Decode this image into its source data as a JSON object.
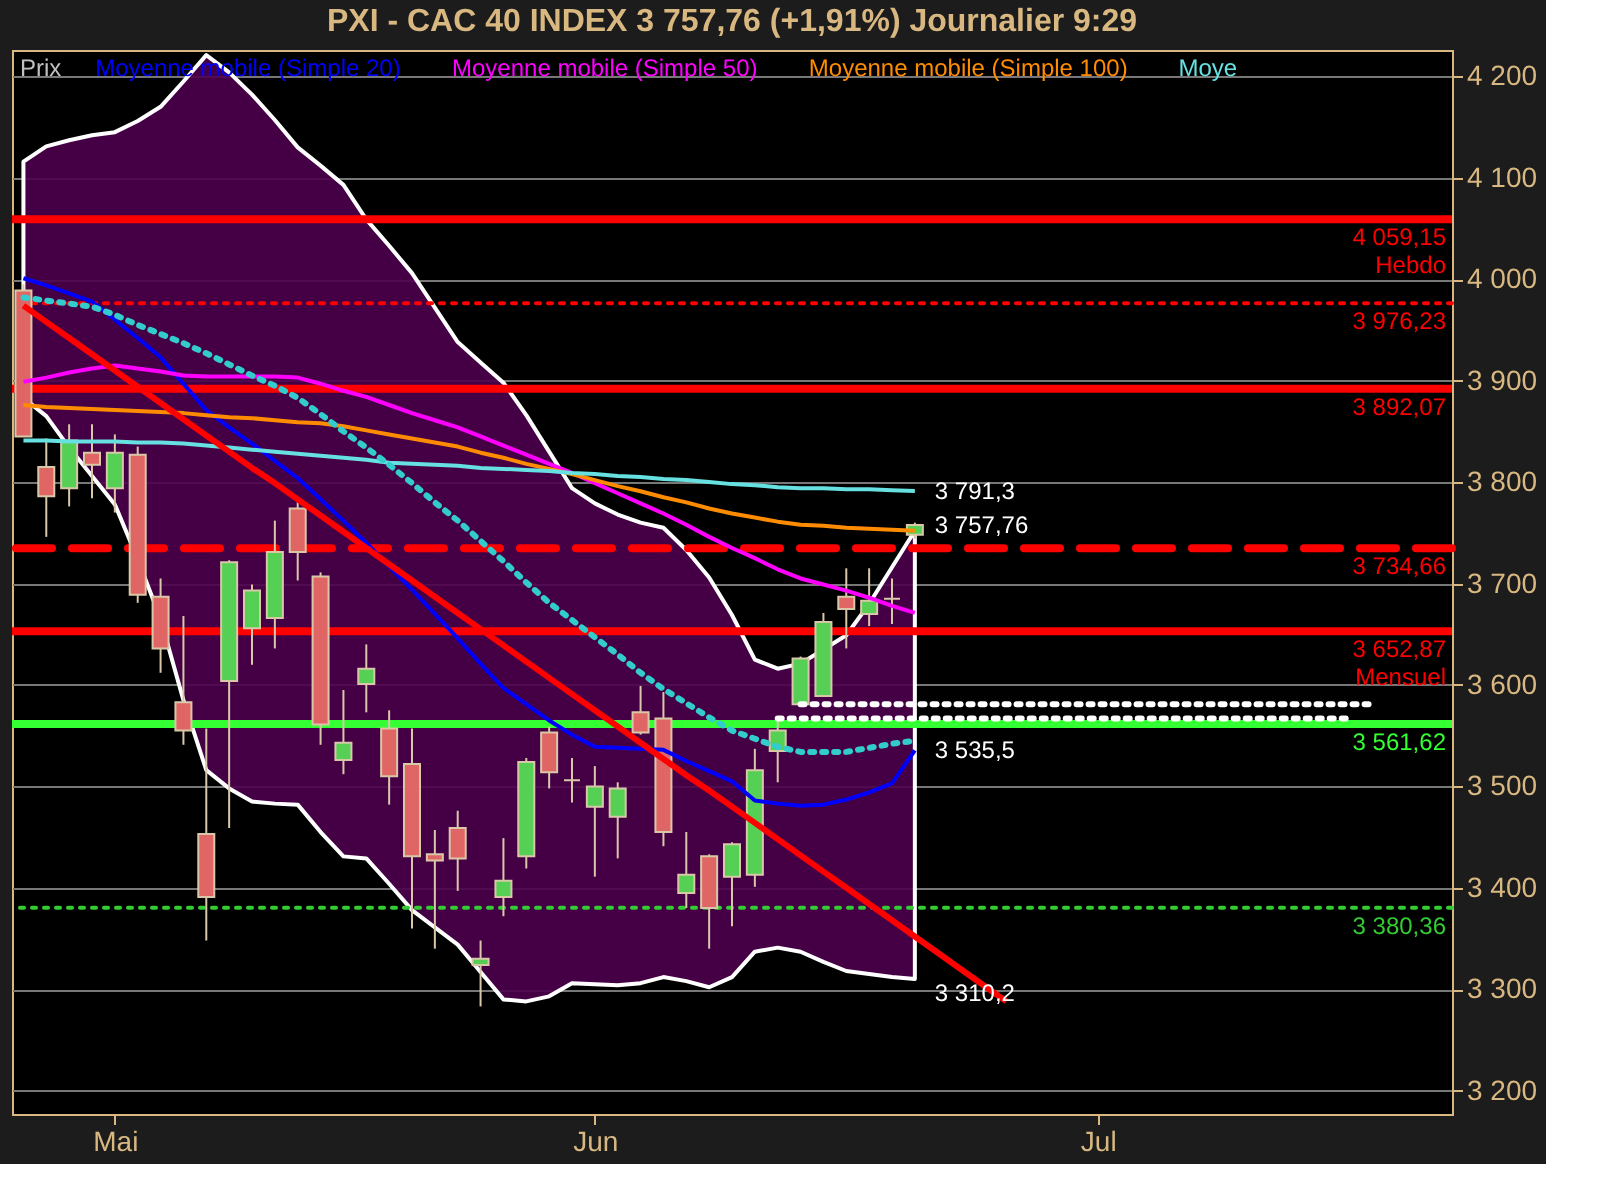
{
  "chart_data": {
    "type": "candlestick",
    "title": "PXI - CAC 40 INDEX    3 757,76 (+1,91%)    Journalier  9:29",
    "categories": [
      null,
      null,
      null,
      null,
      "Mai",
      null,
      null,
      null,
      null,
      null,
      null,
      null,
      null,
      null,
      null,
      null,
      null,
      null,
      null,
      null,
      null,
      null,
      null,
      null,
      null,
      "Jun",
      null,
      null,
      null,
      null,
      null,
      null,
      null,
      null,
      null,
      null,
      null,
      null,
      null,
      null,
      null,
      null,
      null,
      null,
      null,
      null,
      null,
      "Jul",
      null,
      null,
      null,
      null,
      null,
      null,
      null,
      null,
      null,
      null,
      null,
      null,
      null,
      null,
      null
    ],
    "ylim": [
      3177,
      4226
    ],
    "yticks": [
      {
        "value": 3200,
        "label": "3 200"
      },
      {
        "value": 3300,
        "label": "3 300"
      },
      {
        "value": 3400,
        "label": "3 400"
      },
      {
        "value": 3500,
        "label": "3 500"
      },
      {
        "value": 3600,
        "label": "3 600"
      },
      {
        "value": 3700,
        "label": "3 700"
      },
      {
        "value": 3800,
        "label": "3 800"
      },
      {
        "value": 3900,
        "label": "3 900"
      },
      {
        "value": 4000,
        "label": "4 000"
      },
      {
        "value": 4100,
        "label": "4 100"
      },
      {
        "value": 4200,
        "label": "4 200"
      }
    ],
    "grid": "y",
    "legend": "top left",
    "series": [
      {
        "type": "line",
        "name": "Moyenne mobile (Simple 20)",
        "color": "#0000ff",
        "values": [
          4001,
          3994,
          3986,
          3978,
          3960,
          3942,
          3923,
          3897,
          3871,
          3854,
          3838,
          3821,
          3804,
          3783,
          3762,
          3740,
          3717,
          3694,
          3670,
          3646,
          3621,
          3597,
          3581,
          3565,
          3551,
          3539,
          3538,
          3537,
          3536,
          3525,
          3515,
          3505,
          3486,
          3483,
          3481,
          3482,
          3487,
          3494,
          3503,
          3535.5,
          null,
          null,
          null,
          null,
          null,
          null,
          null,
          null,
          null,
          null,
          null,
          null,
          null,
          null,
          null,
          null,
          null,
          null,
          null,
          null,
          null,
          null,
          null
        ],
        "value_labels": [
          null,
          null,
          null,
          null,
          null,
          null,
          null,
          null,
          null,
          null,
          null,
          null,
          null,
          null,
          null,
          null,
          null,
          null,
          null,
          null,
          null,
          null,
          null,
          null,
          null,
          null,
          null,
          null,
          null,
          null,
          null,
          null,
          null,
          null,
          null,
          null,
          null,
          null,
          null,
          "3 535,5",
          null,
          null,
          null,
          null,
          null,
          null,
          null,
          null,
          null,
          null,
          null,
          null,
          null,
          null,
          null,
          null,
          null,
          null,
          null,
          null,
          null,
          null,
          null
        ],
        "upper": [
          4116,
          4131,
          4137,
          4142,
          4145,
          4156,
          4170,
          4195,
          4221,
          4204,
          4182,
          4157,
          4130,
          4112,
          4093,
          4059,
          4033,
          4006,
          3972,
          3938,
          3918,
          3898,
          3866,
          3830,
          3794,
          3779,
          3768,
          3760,
          3755,
          3733,
          3706,
          3669,
          3625,
          3616,
          3621,
          3635,
          3649,
          3680,
          3716,
          3752,
          null,
          null,
          null,
          null,
          null,
          null,
          null,
          null,
          null,
          null,
          null,
          null,
          null,
          null,
          null,
          null,
          null,
          null,
          null,
          null,
          null,
          null,
          null
        ],
        "lower": [
          3883,
          3865,
          3834,
          3806,
          3778,
          3724,
          3665,
          3585,
          3516,
          3498,
          3485,
          3483,
          3482,
          3455,
          3431,
          3429,
          3404,
          3378,
          3361,
          3344,
          3317,
          3290,
          3288,
          3293,
          3306,
          3305,
          3304,
          3306,
          3312,
          3308,
          3302,
          3312,
          3337,
          3341,
          3337,
          3327,
          3318,
          3315,
          3312,
          3310.2,
          null,
          null,
          null,
          null,
          null,
          null,
          null,
          null,
          null,
          null,
          null,
          null,
          null,
          null,
          null,
          null,
          null,
          null,
          null,
          null,
          null,
          null,
          null
        ]
      },
      {
        "type": "line",
        "name": "Moyenne mobile (Simple 50)",
        "color": "#ff00ff",
        "values": [
          3899,
          3903,
          3908,
          3912,
          3915,
          3912,
          3909,
          3905,
          3904,
          3904,
          3904,
          3904,
          3903,
          3897,
          3890,
          3884,
          3876,
          3868,
          3861,
          3854,
          3845,
          3836,
          3827,
          3818,
          3809,
          3799,
          3789,
          3779,
          3769,
          3758,
          3746,
          3735,
          3725,
          3714,
          3705,
          3699,
          3693,
          3686,
          3678,
          3671,
          null,
          null,
          null,
          null,
          null,
          null,
          null,
          null,
          null,
          null,
          null,
          null,
          null,
          null,
          null,
          null,
          null,
          null,
          null,
          null,
          null,
          null,
          null
        ]
      },
      {
        "type": "line",
        "name": "Moyenne mobile (Simple 100)",
        "color": "#ff8c00",
        "values": [
          3876,
          3874,
          3873,
          3872,
          3871,
          3870,
          3869,
          3868,
          3866,
          3864,
          3863,
          3861,
          3859,
          3858,
          3855,
          3851,
          3847,
          3843,
          3839,
          3835,
          3829,
          3824,
          3818,
          3813,
          3808,
          3802,
          3796,
          3791,
          3785,
          3780,
          3774,
          3769,
          3765,
          3761,
          3758,
          3757,
          3755,
          3754,
          3753,
          3752,
          null,
          null,
          null,
          null,
          null,
          null,
          null,
          null,
          null,
          null,
          null,
          null,
          null,
          null,
          null,
          null,
          null,
          null,
          null,
          null,
          null,
          null,
          null
        ]
      },
      {
        "type": "line",
        "name": "Moye",
        "color": "#66e0e0",
        "values": [
          3841,
          3841,
          3840,
          3840,
          3840,
          3839,
          3839,
          3838,
          3836,
          3834,
          3832,
          3830,
          3828,
          3826,
          3824,
          3822,
          3819,
          3818,
          3817,
          3816,
          3814,
          3813,
          3812,
          3811,
          3809,
          3808,
          3806,
          3805,
          3803,
          3802,
          3800,
          3798,
          3797,
          3795,
          3794,
          3794,
          3793,
          3793,
          3792,
          3791.3,
          null,
          null,
          null,
          null,
          null,
          null,
          null,
          null,
          null,
          null,
          null,
          null,
          null,
          null,
          null,
          null,
          null,
          null,
          null,
          null,
          null,
          null,
          null
        ],
        "value_labels": [
          null,
          null,
          null,
          null,
          null,
          null,
          null,
          null,
          null,
          null,
          null,
          null,
          null,
          null,
          null,
          null,
          null,
          null,
          null,
          null,
          null,
          null,
          null,
          null,
          null,
          null,
          null,
          null,
          null,
          null,
          null,
          null,
          null,
          null,
          null,
          null,
          null,
          null,
          null,
          "3 791,3",
          null,
          null,
          null,
          null,
          null,
          null,
          null,
          null,
          null,
          null,
          null,
          null,
          null,
          null,
          null,
          null,
          null,
          null,
          null,
          null,
          null,
          null,
          null
        ]
      },
      {
        "type": "line",
        "color": "#33cccc",
        "line_style": "dotted",
        "values": [
          3982,
          3979,
          3976,
          3973,
          3965,
          3955,
          3946,
          3937,
          3927,
          3916,
          3905,
          3895,
          3883,
          3867,
          3850,
          3834,
          3817,
          3799,
          3780,
          3762,
          3742,
          3722,
          3701,
          3681,
          3664,
          3647,
          3630,
          3612,
          3596,
          3582,
          3568,
          3555,
          3547,
          3539,
          3534,
          3534,
          3534,
          3538,
          3542,
          3545,
          null,
          null,
          null,
          null,
          null,
          null,
          null,
          null,
          null,
          null,
          null,
          null,
          null,
          null,
          null,
          null,
          null,
          null,
          null,
          null,
          null,
          null,
          null
        ]
      },
      {
        "type": "line",
        "color": "#ff0000",
        "values": [
          3974,
          3958,
          3942,
          3926,
          3910,
          3894,
          3878,
          3862,
          3846,
          3830,
          3814,
          3799,
          3783,
          3767,
          3751,
          3735,
          3719,
          3703,
          3687,
          3671,
          3655,
          3639,
          3623,
          3607,
          3591,
          3575,
          3559,
          3543,
          3527,
          3511,
          3496,
          3480,
          3464,
          3448,
          3432,
          3416,
          3400,
          3384,
          3368,
          3352,
          3336,
          3320,
          3304,
          3288,
          null,
          null,
          null,
          null,
          null,
          null,
          null,
          null,
          null,
          null,
          null,
          null,
          null,
          null,
          null,
          null,
          null,
          null,
          null
        ]
      },
      {
        "type": "line",
        "color": "#ffffff",
        "line_style": "dotted",
        "values": [
          null,
          null,
          null,
          null,
          null,
          null,
          null,
          null,
          null,
          null,
          null,
          null,
          null,
          null,
          null,
          null,
          null,
          null,
          null,
          null,
          null,
          null,
          null,
          null,
          null,
          null,
          null,
          null,
          null,
          null,
          null,
          null,
          null,
          null,
          3581,
          3581,
          3581,
          3581,
          3581,
          3581,
          3581,
          3581,
          3581,
          3581,
          3581,
          3581,
          3581,
          3581,
          3581,
          3581,
          3581,
          3581,
          3581,
          3581,
          3581,
          3581,
          3581,
          3581,
          3581,
          3581,
          null,
          null,
          null
        ]
      },
      {
        "type": "line",
        "color": "#ffffff",
        "line_style": "dotted",
        "values": [
          null,
          null,
          null,
          null,
          null,
          null,
          null,
          null,
          null,
          null,
          null,
          null,
          null,
          null,
          null,
          null,
          null,
          null,
          null,
          null,
          null,
          null,
          null,
          null,
          null,
          null,
          null,
          null,
          null,
          null,
          null,
          null,
          null,
          3567,
          3567,
          3567,
          3567,
          3567,
          3567,
          3567,
          3567,
          3567,
          3567,
          3567,
          3567,
          3567,
          3567,
          3567,
          3567,
          3567,
          3567,
          3567,
          3567,
          3567,
          3567,
          3567,
          3567,
          3567,
          3567,
          null,
          null,
          null,
          null
        ]
      },
      {
        "name": "Prix",
        "color": "#c0c0c0",
        "ohlc": [
          [
            3989,
            3995,
            3845,
            3845
          ],
          [
            3815,
            3843,
            3746,
            3786
          ],
          [
            3794,
            3857,
            3776,
            3841
          ],
          [
            3829,
            3857,
            3784,
            3817
          ],
          [
            3794,
            3847,
            3770,
            3829
          ],
          [
            3827,
            3835,
            3681,
            3689
          ],
          [
            3687,
            3705,
            3612,
            3636
          ],
          [
            3583,
            3668,
            3541,
            3555
          ],
          [
            3453,
            3557,
            3348,
            3391
          ],
          [
            3604,
            3723,
            3459,
            3721
          ],
          [
            3656,
            3699,
            3620,
            3693
          ],
          [
            3666,
            3762,
            3636,
            3731
          ],
          [
            3774,
            3780,
            3703,
            3731
          ],
          [
            3707,
            3711,
            3541,
            3561
          ],
          [
            3526,
            3595,
            3512,
            3543
          ],
          [
            3601,
            3640,
            3573,
            3616
          ],
          [
            3557,
            3575,
            3482,
            3510
          ],
          [
            3522,
            3557,
            3360,
            3431
          ],
          [
            3433,
            3457,
            3340,
            3427
          ],
          [
            3459,
            3476,
            3397,
            3429
          ],
          [
            3324,
            3348,
            3283,
            3330
          ],
          [
            3391,
            3449,
            3372,
            3407
          ],
          [
            3431,
            3528,
            3419,
            3524
          ],
          [
            3553,
            3559,
            3498,
            3514
          ],
          [
            3506,
            3528,
            3484,
            3506
          ],
          [
            3480,
            3520,
            3411,
            3500
          ],
          [
            3470,
            3504,
            3429,
            3498
          ],
          [
            3573,
            3599,
            3551,
            3553
          ],
          [
            3567,
            3593,
            3441,
            3455
          ],
          [
            3395,
            3455,
            3380,
            3413
          ],
          [
            3431,
            3433,
            3340,
            3380
          ],
          [
            3411,
            3445,
            3362,
            3443
          ],
          [
            3413,
            3537,
            3401,
            3516
          ],
          [
            3535,
            3565,
            3504,
            3555
          ],
          [
            3581,
            3628,
            3579,
            3626
          ],
          [
            3589,
            3671,
            3589,
            3662
          ],
          [
            3687,
            3715,
            3636,
            3675
          ],
          [
            3670,
            3715,
            3658,
            3683
          ],
          [
            3685,
            3705,
            3660,
            3685
          ],
          [
            3748,
            3760,
            3744,
            3757.76
          ],
          null,
          null,
          null,
          null,
          null,
          null,
          null,
          null,
          null,
          null,
          null,
          null,
          null,
          null,
          null,
          null,
          null,
          null,
          null,
          null,
          null,
          null,
          null
        ],
        "value_labels": [
          null,
          null,
          null,
          null,
          null,
          null,
          null,
          null,
          null,
          null,
          null,
          null,
          null,
          null,
          null,
          null,
          null,
          null,
          null,
          null,
          null,
          null,
          null,
          null,
          null,
          null,
          null,
          null,
          null,
          null,
          null,
          null,
          null,
          null,
          null,
          null,
          null,
          null,
          null,
          "3 757,76",
          null,
          null,
          null,
          null,
          null,
          null,
          null,
          null,
          null,
          null,
          null,
          null,
          null,
          null,
          null,
          null,
          null,
          null,
          null,
          null,
          null,
          null,
          null
        ],
        "colors": [
          "#e06666",
          "#e06666",
          "#55d055",
          "#e06666",
          "#55d055",
          "#e06666",
          "#e06666",
          "#e06666",
          "#e06666",
          "#55d055",
          "#55d055",
          "#55d055",
          "#e06666",
          "#e06666",
          "#55d055",
          "#55d055",
          "#e06666",
          "#e06666",
          "#e06666",
          "#e06666",
          "#55d055",
          "#55d055",
          "#55d055",
          "#e06666",
          "#d8c8a8",
          "#55d055",
          "#55d055",
          "#e06666",
          "#e06666",
          "#55d055",
          "#e06666",
          "#55d055",
          "#55d055",
          "#55d055",
          "#55d055",
          "#55d055",
          "#e06666",
          "#55d055",
          "#d8c8a8",
          "#55d055",
          null,
          null,
          null,
          null,
          null,
          null,
          null,
          null,
          null,
          null,
          null,
          null,
          null,
          null,
          null,
          null,
          null,
          null,
          null,
          null,
          null,
          null,
          null
        ]
      }
    ],
    "ref_lines": [
      {
        "axis": "y",
        "value": 4059.15,
        "label": "4 059,15\nHebdo",
        "color": "#ff0000",
        "line_style": "solid"
      },
      {
        "axis": "y",
        "value": 3976.23,
        "label": "3 976,23",
        "color": "#ff0000",
        "line_style": "dotted"
      },
      {
        "axis": "y",
        "value": 3892.07,
        "label": "3 892,07",
        "color": "#ff0000",
        "line_style": "solid"
      },
      {
        "axis": "y",
        "value": 3734.66,
        "label": "3 734,66",
        "color": "#ff0000",
        "line_style": "dashed"
      },
      {
        "axis": "y",
        "value": 3652.87,
        "label": "3 652,87\nMensuel",
        "color": "#ff0000",
        "line_style": "solid"
      },
      {
        "axis": "y",
        "value": 3561.62,
        "label": "3 561,62",
        "color": "#33ff33",
        "line_style": "solid"
      },
      {
        "axis": "y",
        "value": 3380.36,
        "label": "3 380,36",
        "color": "#33cc33",
        "line_style": "dotted"
      }
    ],
    "annotations": [
      {
        "text": "3 310,2",
        "y": 3310.2
      }
    ]
  }
}
